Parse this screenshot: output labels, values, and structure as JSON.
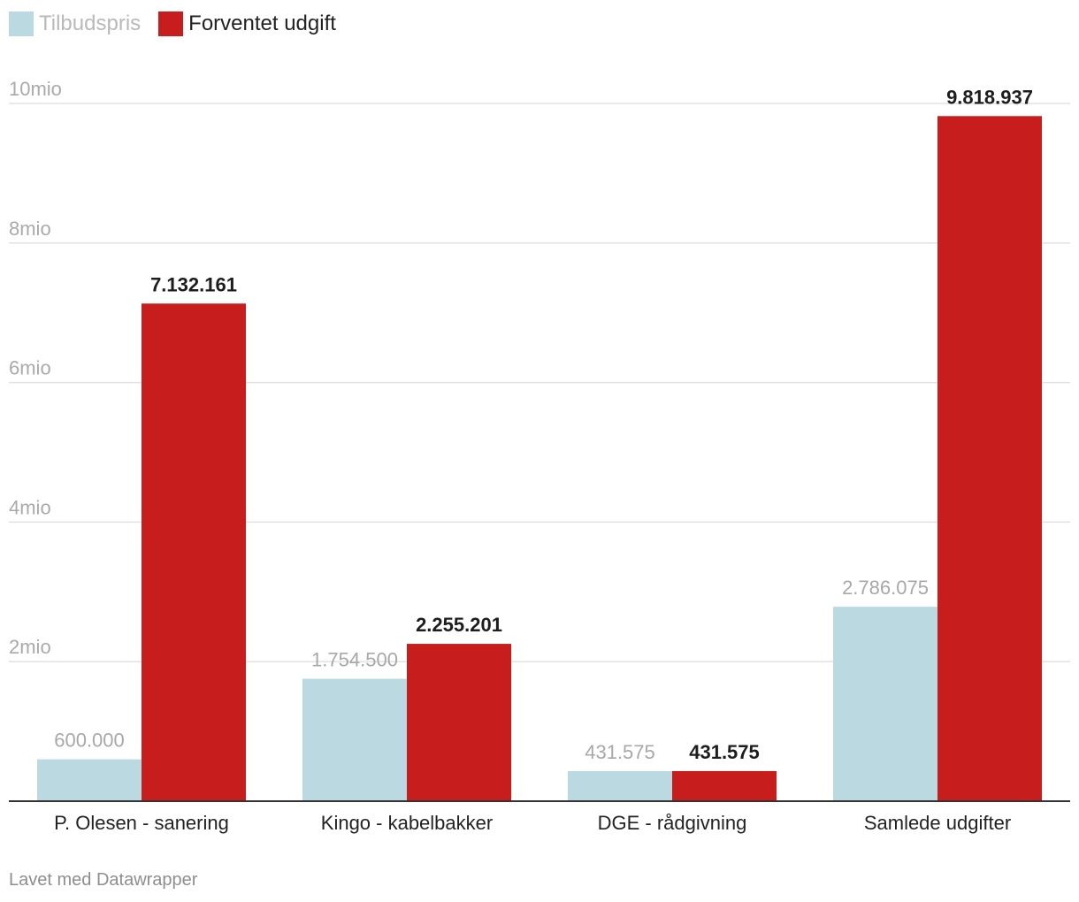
{
  "legend": [
    {
      "label": "Tilbudspris",
      "color": "#bad9e1"
    },
    {
      "label": "Forventet udgift",
      "color": "#c71e1d"
    }
  ],
  "footer": "Lavet med Datawrapper",
  "chart_data": {
    "type": "bar",
    "title": "",
    "xlabel": "",
    "ylabel": "",
    "ylim": [
      0,
      10000000
    ],
    "grid": true,
    "legend_position": "top-left",
    "y_ticks": [
      {
        "value": 2000000,
        "label": "2mio"
      },
      {
        "value": 4000000,
        "label": "4mio"
      },
      {
        "value": 6000000,
        "label": "6mio"
      },
      {
        "value": 8000000,
        "label": "8mio"
      },
      {
        "value": 10000000,
        "label": "10mio"
      }
    ],
    "categories": [
      "P. Olesen - sanering",
      "Kingo - kabelbakker",
      "DGE - rådgivning",
      "Samlede udgifter"
    ],
    "series": [
      {
        "name": "Tilbudspris",
        "color": "#bad9e1",
        "values": [
          600000,
          1754500,
          431575,
          2786075
        ],
        "value_labels": [
          "600.000",
          "1.754.500",
          "431.575",
          "2.786.075"
        ]
      },
      {
        "name": "Forventet udgift",
        "color": "#c71e1d",
        "values": [
          7132161,
          2255201,
          431575,
          9818937
        ],
        "value_labels": [
          "7.132.161",
          "2.255.201",
          "431.575",
          "9.818.937"
        ]
      }
    ]
  }
}
